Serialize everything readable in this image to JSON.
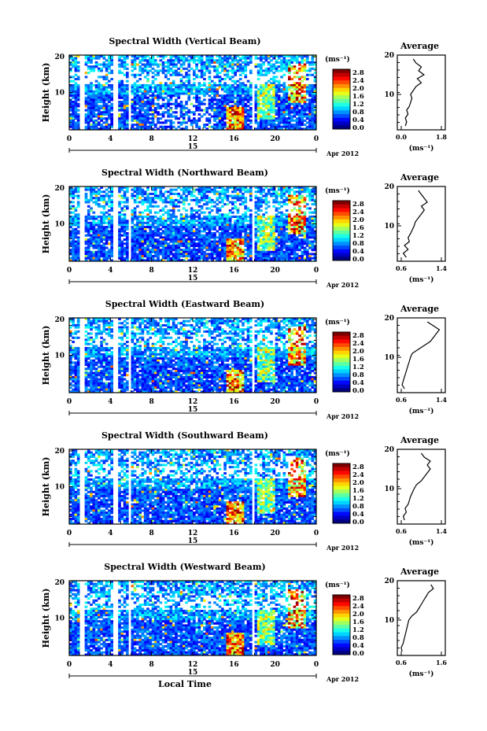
{
  "chart_data": [
    {
      "type": "heatmap",
      "title": "Spectral Width (Vertical Beam)",
      "ylabel": "Height (km)",
      "y_ticks": [
        "20",
        "10"
      ],
      "x_ticks": [
        "0",
        "4",
        "8",
        "12",
        "16",
        "20",
        "0"
      ],
      "day_label": "15",
      "date_label": "Apr 2012",
      "colorbar_unit": "(ms⁻¹)",
      "colorbar_ticks": [
        "2.8",
        "2.4",
        "2.0",
        "1.6",
        "1.2",
        "0.8",
        "0.4",
        "0.0"
      ],
      "profile_title": "Average",
      "profile_y_ticks": [
        "20",
        "10"
      ],
      "profile_x_ticks": [
        "0.0",
        "1.8"
      ],
      "profile_xlabel": "(ms⁻¹)",
      "profile_xlim": [
        0.0,
        1.8
      ],
      "profile_ylim": [
        1,
        20
      ],
      "profile_heights": [
        2,
        3,
        4,
        5,
        6,
        7,
        8,
        9,
        10,
        11,
        12,
        13,
        14,
        15,
        16,
        17,
        18,
        19
      ],
      "profile_values": [
        0.3,
        0.35,
        0.3,
        0.4,
        0.35,
        0.45,
        0.5,
        0.55,
        0.5,
        0.6,
        0.7,
        0.9,
        0.75,
        1.0,
        0.8,
        0.9,
        0.7,
        0.6
      ]
    },
    {
      "type": "heatmap",
      "title": "Spectral Width (Northward Beam)",
      "ylabel": "Height (km)",
      "y_ticks": [
        "20",
        "10"
      ],
      "x_ticks": [
        "0",
        "4",
        "8",
        "12",
        "16",
        "20",
        "0"
      ],
      "day_label": "15",
      "date_label": "Apr 2012",
      "colorbar_unit": "(ms⁻¹)",
      "colorbar_ticks": [
        "2.8",
        "2.4",
        "2.0",
        "1.6",
        "1.2",
        "0.8",
        "0.4",
        "0.0"
      ],
      "profile_title": "Average",
      "profile_y_ticks": [
        "20",
        "10"
      ],
      "profile_x_ticks": [
        "0.6",
        "1.4"
      ],
      "profile_xlabel": "(ms⁻¹)",
      "profile_xlim": [
        0.6,
        1.4
      ],
      "profile_ylim": [
        1,
        20
      ],
      "profile_heights": [
        2,
        3,
        4,
        5,
        6,
        7,
        8,
        9,
        10,
        11,
        12,
        13,
        14,
        15,
        16,
        17,
        18,
        19
      ],
      "profile_values": [
        0.75,
        0.7,
        0.78,
        0.72,
        0.8,
        0.78,
        0.82,
        0.85,
        0.88,
        0.9,
        0.95,
        1.0,
        1.05,
        1.0,
        1.1,
        1.05,
        1.0,
        0.95
      ]
    },
    {
      "type": "heatmap",
      "title": "Spectral Width (Eastward Beam)",
      "ylabel": "Height (km)",
      "y_ticks": [
        "20",
        "10"
      ],
      "x_ticks": [
        "0",
        "4",
        "8",
        "12",
        "16",
        "20",
        "0"
      ],
      "day_label": "15",
      "date_label": "Apr 2012",
      "colorbar_unit": "(ms⁻¹)",
      "colorbar_ticks": [
        "2.8",
        "2.4",
        "2.0",
        "1.6",
        "1.2",
        "0.8",
        "0.4",
        "0.0"
      ],
      "profile_title": "Average",
      "profile_y_ticks": [
        "20",
        "10"
      ],
      "profile_x_ticks": [
        "0.6",
        "1.4"
      ],
      "profile_xlabel": "(ms⁻¹)",
      "profile_xlim": [
        0.6,
        1.4
      ],
      "profile_ylim": [
        1,
        20
      ],
      "profile_heights": [
        2,
        3,
        4,
        5,
        6,
        7,
        8,
        9,
        10,
        11,
        12,
        13,
        14,
        15,
        16,
        17,
        18,
        19
      ],
      "profile_values": [
        0.72,
        0.68,
        0.7,
        0.72,
        0.74,
        0.76,
        0.78,
        0.8,
        0.82,
        0.85,
        0.95,
        1.05,
        1.15,
        1.2,
        1.25,
        1.3,
        1.2,
        1.1
      ]
    },
    {
      "type": "heatmap",
      "title": "Spectral Width (Southward Beam)",
      "ylabel": "Height (km)",
      "y_ticks": [
        "20",
        "10"
      ],
      "x_ticks": [
        "0",
        "4",
        "8",
        "12",
        "16",
        "20",
        "0"
      ],
      "day_label": "15",
      "date_label": "Apr 2012",
      "colorbar_unit": "(ms⁻¹)",
      "colorbar_ticks": [
        "2.8",
        "2.4",
        "2.0",
        "1.6",
        "1.2",
        "0.8",
        "0.4",
        "0.0"
      ],
      "profile_title": "Average",
      "profile_y_ticks": [
        "20",
        "10"
      ],
      "profile_x_ticks": [
        "0.6",
        "1.4"
      ],
      "profile_xlabel": "(ms⁻¹)",
      "profile_xlim": [
        0.6,
        1.4
      ],
      "profile_ylim": [
        1,
        20
      ],
      "profile_heights": [
        2,
        3,
        4,
        5,
        6,
        7,
        8,
        9,
        10,
        11,
        12,
        13,
        14,
        15,
        16,
        17,
        18,
        19
      ],
      "profile_values": [
        0.72,
        0.7,
        0.75,
        0.73,
        0.78,
        0.8,
        0.82,
        0.85,
        0.88,
        0.92,
        1.0,
        1.05,
        1.1,
        1.15,
        1.1,
        1.15,
        1.05,
        1.0
      ]
    },
    {
      "type": "heatmap",
      "title": "Spectral Width (Westward Beam)",
      "ylabel": "Height (km)",
      "xlabel": "Local Time",
      "y_ticks": [
        "20",
        "10"
      ],
      "x_ticks": [
        "0",
        "4",
        "8",
        "12",
        "16",
        "20",
        "0"
      ],
      "day_label": "15",
      "date_label": "Apr 2012",
      "colorbar_unit": "(ms⁻¹)",
      "colorbar_ticks": [
        "2.8",
        "2.4",
        "2.0",
        "1.6",
        "1.2",
        "0.8",
        "0.4",
        "0.0"
      ],
      "profile_title": "Average",
      "profile_y_ticks": [
        "20",
        "10"
      ],
      "profile_x_ticks": [
        "0.6",
        "1.6"
      ],
      "profile_xlabel": "(ms⁻¹)",
      "profile_xlim": [
        0.6,
        1.6
      ],
      "profile_ylim": [
        1,
        20
      ],
      "profile_heights": [
        2,
        3,
        4,
        5,
        6,
        7,
        8,
        9,
        10,
        11,
        12,
        13,
        14,
        15,
        16,
        17,
        18,
        19
      ],
      "profile_values": [
        0.7,
        0.68,
        0.72,
        0.74,
        0.76,
        0.78,
        0.8,
        0.82,
        0.84,
        0.9,
        1.0,
        1.05,
        1.1,
        1.15,
        1.2,
        1.25,
        1.35,
        1.3
      ]
    }
  ]
}
